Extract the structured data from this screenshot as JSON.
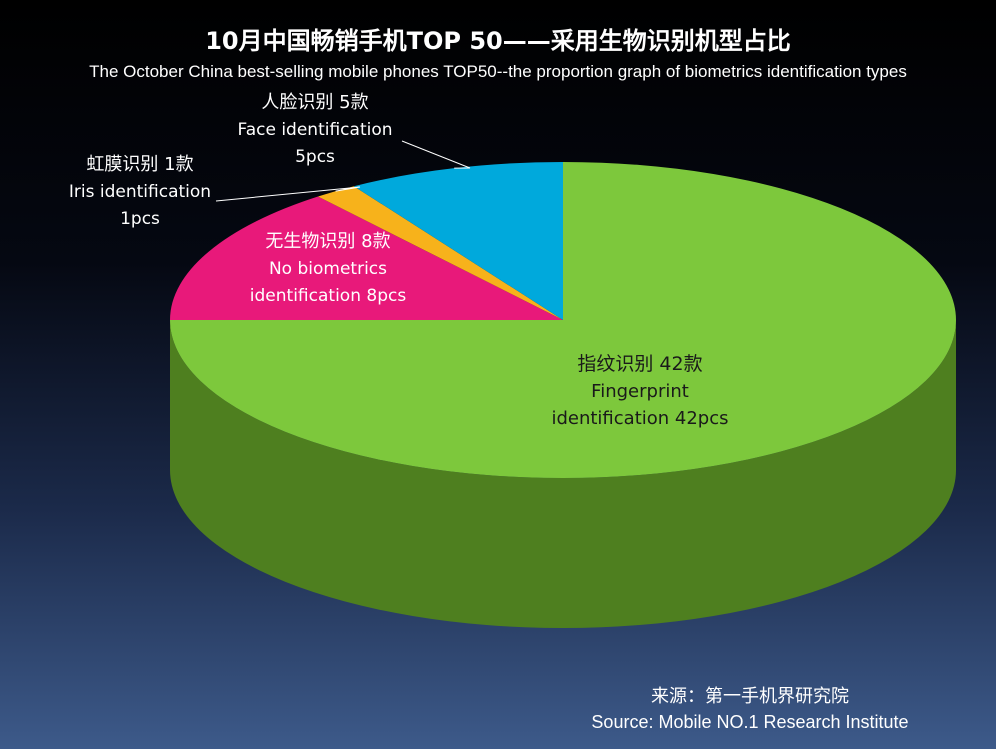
{
  "chart_data": {
    "type": "pie",
    "title": "10月中国畅销手机TOP 50——采用生物识别机型占比",
    "subtitle": "The October China best-selling mobile phones TOP50--the proportion graph of biometrics identification types",
    "slices": [
      {
        "label_cn": "指纹识别  42款",
        "label_en_1": "Fingerprint",
        "label_en_2": "identification 42pcs",
        "value": 42,
        "color": "#7dc83c",
        "side_color": "#4e7f1f"
      },
      {
        "label_cn": "无生物识别  8款",
        "label_en_1": "No biometrics",
        "label_en_2": "identification 8pcs",
        "value": 8,
        "color": "#e8197a",
        "side_color": "#8e0f4a"
      },
      {
        "label_cn": "虹膜识别  1款",
        "label_en_1": "Iris identification",
        "label_en_2": "1pcs",
        "value": 1,
        "color": "#f7b21b",
        "side_color": "#a8760f"
      },
      {
        "label_cn": "人脸识别 5款",
        "label_en_1": "Face identification",
        "label_en_2": "5pcs",
        "value": 5,
        "color": "#00a9dc",
        "side_color": "#006f91"
      }
    ],
    "legend": "none",
    "view": "3d"
  },
  "source": {
    "cn": "来源：第一手机界研究院",
    "en": "Source: Mobile NO.1 Research Institute"
  }
}
